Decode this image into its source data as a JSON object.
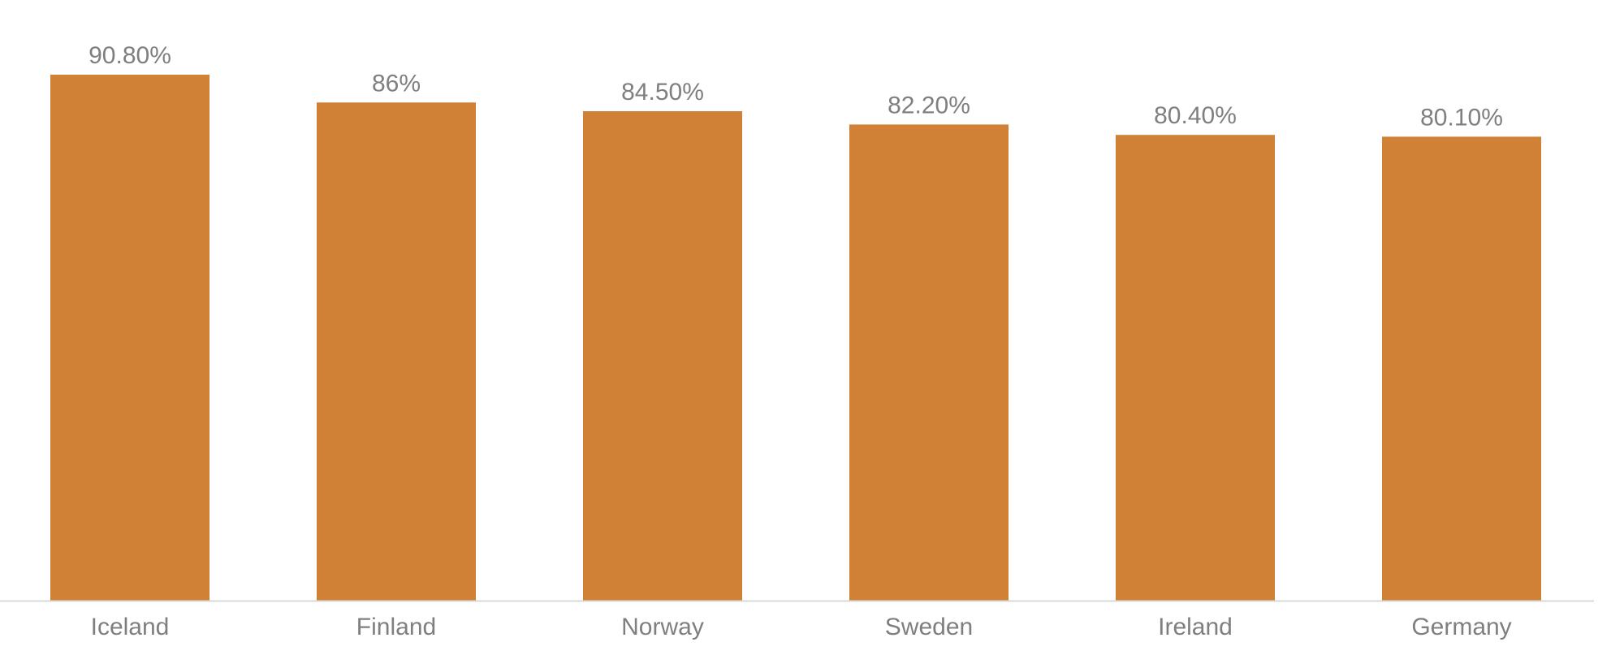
{
  "chart_data": {
    "type": "bar",
    "categories": [
      "Iceland",
      "Finland",
      "Norway",
      "Sweden",
      "Ireland",
      "Germany"
    ],
    "values": [
      90.8,
      86,
      84.5,
      82.2,
      80.4,
      80.1
    ],
    "data_labels": [
      "90.80%",
      "86%",
      "84.50%",
      "82.20%",
      "80.40%",
      "80.10%"
    ],
    "title": "",
    "xlabel": "",
    "ylabel": "",
    "ylim": [
      0,
      100
    ],
    "grid": false,
    "legend": "none",
    "colors": {
      "bar": "#D08136",
      "axis": "#d9d9d9",
      "text": "#7f7f7f"
    }
  }
}
